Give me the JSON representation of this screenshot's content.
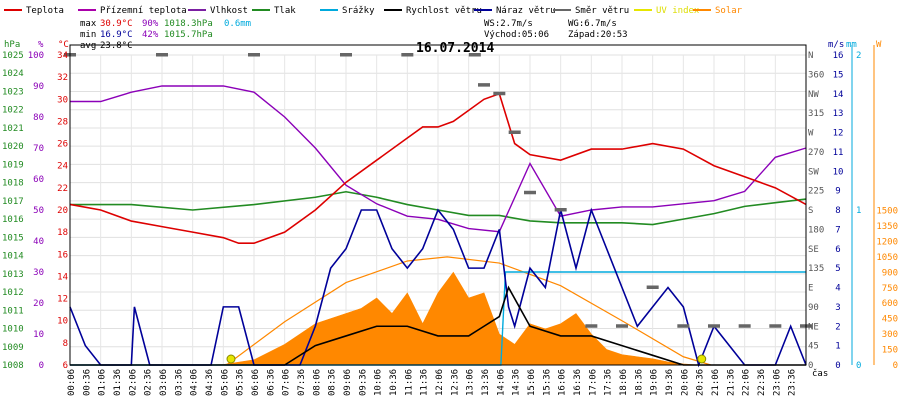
{
  "chart_data": {
    "type": "line",
    "title": "16.07.2014",
    "legend": [
      {
        "name": "Teplota",
        "color": "#dd0000"
      },
      {
        "name": "Přízemní teplota",
        "color": "#aa00aa"
      },
      {
        "name": "Vlhkost",
        "color": "#7b1fa2"
      },
      {
        "name": "Tlak",
        "color": "#228b22"
      },
      {
        "name": "Srážky",
        "color": "#00aadd"
      },
      {
        "name": "Rychlost větru",
        "color": "#000000"
      },
      {
        "name": "Náraz větru",
        "color": "#000099"
      },
      {
        "name": "Směr větru",
        "color": "#666666"
      },
      {
        "name": "UV index",
        "color": "#e6e600"
      },
      {
        "name": "Solar",
        "color": "#ff8800"
      }
    ],
    "stats": {
      "max_label": "max",
      "max_temp": "30.9°C",
      "max_hum": "90%",
      "max_pres": "1018.3hPa",
      "rain": "0.6mm",
      "min_label": "min",
      "min_temp": "16.9°C",
      "min_hum": "42%",
      "min_pres": "1015.7hPa",
      "avg_label": "avg",
      "avg_temp": "23.8°C",
      "ws": "WS:2.7m/s",
      "wg": "WG:6.7m/s",
      "sunrise": "Východ:05:06",
      "sunset": "Západ:20:53"
    },
    "axis_units": {
      "hpa": "hPa",
      "pct": "%",
      "temp": "°C",
      "ms": "m/s",
      "mm": "mm",
      "w": "W",
      "time": "čas"
    },
    "axes": {
      "hpa": [
        "1008",
        "1009",
        "1010",
        "1011",
        "1012",
        "1013",
        "1014",
        "1015",
        "1016",
        "1017",
        "1018",
        "1019",
        "1020",
        "1021",
        "1022",
        "1023",
        "1024",
        "1025"
      ],
      "pct": [
        "0",
        "10",
        "20",
        "30",
        "40",
        "50",
        "60",
        "70",
        "80",
        "90",
        "100"
      ],
      "temp": [
        "6",
        "8",
        "10",
        "12",
        "14",
        "16",
        "18",
        "20",
        "22",
        "24",
        "26",
        "28",
        "30",
        "32",
        "34"
      ],
      "dir": [
        "0",
        "45",
        "NE",
        "90",
        "E",
        "135",
        "SE",
        "180",
        "S",
        "225",
        "SW",
        "270",
        "W",
        "315",
        "NW",
        "360",
        "N"
      ],
      "ms": [
        "0",
        "1",
        "2",
        "3",
        "4",
        "5",
        "6",
        "7",
        "8",
        "9",
        "10",
        "11",
        "12",
        "13",
        "14",
        "15",
        "16"
      ],
      "mm": [
        "0",
        "1",
        "2"
      ],
      "w": [
        "0",
        "150",
        "300",
        "450",
        "600",
        "750",
        "900",
        "1050",
        "1200",
        "1350",
        "1500"
      ]
    },
    "xticks": [
      "00:06",
      "00:36",
      "01:06",
      "01:36",
      "02:06",
      "02:36",
      "03:06",
      "03:36",
      "04:06",
      "04:36",
      "05:06",
      "05:36",
      "06:06",
      "06:36",
      "07:06",
      "07:36",
      "08:06",
      "08:36",
      "09:06",
      "09:36",
      "10:06",
      "10:36",
      "11:06",
      "11:36",
      "12:06",
      "12:36",
      "13:06",
      "13:36",
      "14:06",
      "14:36",
      "15:06",
      "15:36",
      "16:06",
      "16:36",
      "17:06",
      "17:36",
      "18:06",
      "18:36",
      "19:06",
      "19:36",
      "20:06",
      "20:36",
      "21:06",
      "21:36",
      "22:06",
      "22:36",
      "23:06",
      "23:36"
    ],
    "series": {
      "temp_c": {
        "x": [
          0,
          1,
          2,
          3,
          4,
          5,
          5.5,
          6,
          7,
          8,
          9,
          10,
          11,
          11.5,
          12,
          12.5,
          13,
          13.5,
          14,
          14.5,
          15,
          16,
          17,
          18,
          19,
          20,
          21,
          22,
          23,
          24
        ],
        "y": [
          20.5,
          20,
          19,
          18.5,
          18,
          17.5,
          17,
          17,
          18,
          20,
          22.5,
          24.5,
          26.5,
          27.5,
          27.5,
          28,
          29,
          30,
          30.5,
          26,
          25,
          24.5,
          25.5,
          25.5,
          26,
          25.5,
          24,
          23,
          22,
          20.5
        ]
      },
      "humidity_pct": {
        "x": [
          0,
          1,
          2,
          3,
          4,
          5,
          6,
          7,
          8,
          9,
          10,
          11,
          12,
          13,
          14,
          15,
          16,
          17,
          18,
          19,
          20,
          21,
          22,
          23,
          24
        ],
        "y": [
          85,
          85,
          88,
          90,
          90,
          90,
          88,
          80,
          70,
          58,
          52,
          48,
          47,
          44,
          43,
          65,
          48,
          50,
          51,
          51,
          52,
          53,
          56,
          67,
          70
        ]
      },
      "pressure_hpa": {
        "x": [
          0,
          2,
          4,
          6,
          8,
          9,
          10,
          11,
          12,
          13,
          14,
          15,
          16,
          17,
          18,
          19,
          20,
          21,
          22,
          23,
          24
        ],
        "y": [
          1016.8,
          1016.8,
          1016.5,
          1016.8,
          1017.2,
          1017.5,
          1017.2,
          1016.8,
          1016.5,
          1016.2,
          1016.2,
          1015.9,
          1015.8,
          1015.8,
          1015.8,
          1015.7,
          1016,
          1016.3,
          1016.7,
          1016.9,
          1017.1
        ]
      },
      "rain_mm_cum": {
        "x": [
          0,
          14.05,
          14.2,
          24
        ],
        "y": [
          0,
          0,
          0.6,
          0.6
        ]
      },
      "wind_speed_ms": {
        "x": [
          0,
          1,
          2,
          3,
          4,
          5,
          6,
          7,
          8,
          9,
          10,
          11,
          12,
          13,
          13.5,
          14,
          14.3,
          15,
          16,
          17,
          18,
          19,
          20,
          21,
          22,
          23,
          24
        ],
        "y": [
          0,
          0,
          0,
          0,
          0,
          0,
          0,
          0,
          1,
          1.5,
          2,
          2,
          1.5,
          1.5,
          2,
          2.5,
          4,
          2,
          1.5,
          1.5,
          1,
          0.5,
          0,
          0,
          0,
          0,
          0
        ]
      },
      "wind_gust_ms": {
        "x": [
          0,
          0.5,
          1,
          2,
          2.1,
          2.6,
          3,
          4,
          4.6,
          5,
          5.5,
          6,
          7,
          7.5,
          8,
          8.5,
          9,
          9.5,
          10,
          10.5,
          11,
          11.5,
          12,
          12.5,
          13,
          13.5,
          14,
          14.3,
          14.5,
          15,
          15.5,
          16,
          16.5,
          17,
          17.5,
          18,
          18.5,
          19,
          19.5,
          20,
          20.5,
          21,
          22,
          23,
          23.5,
          24
        ],
        "y": [
          3,
          1,
          0,
          0,
          3,
          0,
          0,
          0,
          0,
          3,
          3,
          0,
          0,
          0,
          2,
          5,
          6,
          8,
          8,
          6,
          5,
          6,
          8,
          7,
          5,
          5,
          7,
          3,
          2,
          5,
          4,
          8,
          5,
          8,
          6,
          4,
          2,
          3,
          4,
          3,
          0,
          2,
          0,
          0,
          2,
          0
        ]
      },
      "solar_w": {
        "x": [
          4.5,
          5,
          6,
          7,
          8,
          9,
          9.5,
          10,
          10.5,
          11,
          11.5,
          12,
          12.5,
          13,
          13.5,
          14,
          14.5,
          15,
          15.5,
          16,
          16.5,
          17,
          17.5,
          18,
          18.5,
          19,
          19.5,
          20,
          20.5
        ],
        "y": [
          0,
          5,
          50,
          200,
          400,
          500,
          550,
          650,
          500,
          700,
          400,
          700,
          900,
          650,
          700,
          300,
          200,
          400,
          350,
          400,
          500,
          300,
          150,
          100,
          80,
          60,
          30,
          10,
          0
        ]
      },
      "solar_theoretical_w": {
        "x": [
          5.1,
          7,
          9,
          11,
          12.3,
          14,
          16,
          18,
          20,
          20.9
        ],
        "y": [
          0,
          420,
          800,
          1010,
          1050,
          990,
          770,
          430,
          80,
          0
        ]
      },
      "uv_points": {
        "x": [
          5.25,
          20.6
        ],
        "y": [
          0,
          0
        ]
      },
      "wind_dir_deg": {
        "x": [
          0,
          3,
          6,
          9,
          11,
          13.2,
          13.5,
          14,
          14.5,
          15,
          16,
          17,
          18,
          19,
          20,
          21,
          22,
          23,
          24
        ],
        "y": [
          360,
          360,
          360,
          360,
          360,
          360,
          325,
          315,
          270,
          200,
          180,
          45,
          45,
          90,
          45,
          45,
          45,
          45,
          45
        ]
      }
    }
  }
}
